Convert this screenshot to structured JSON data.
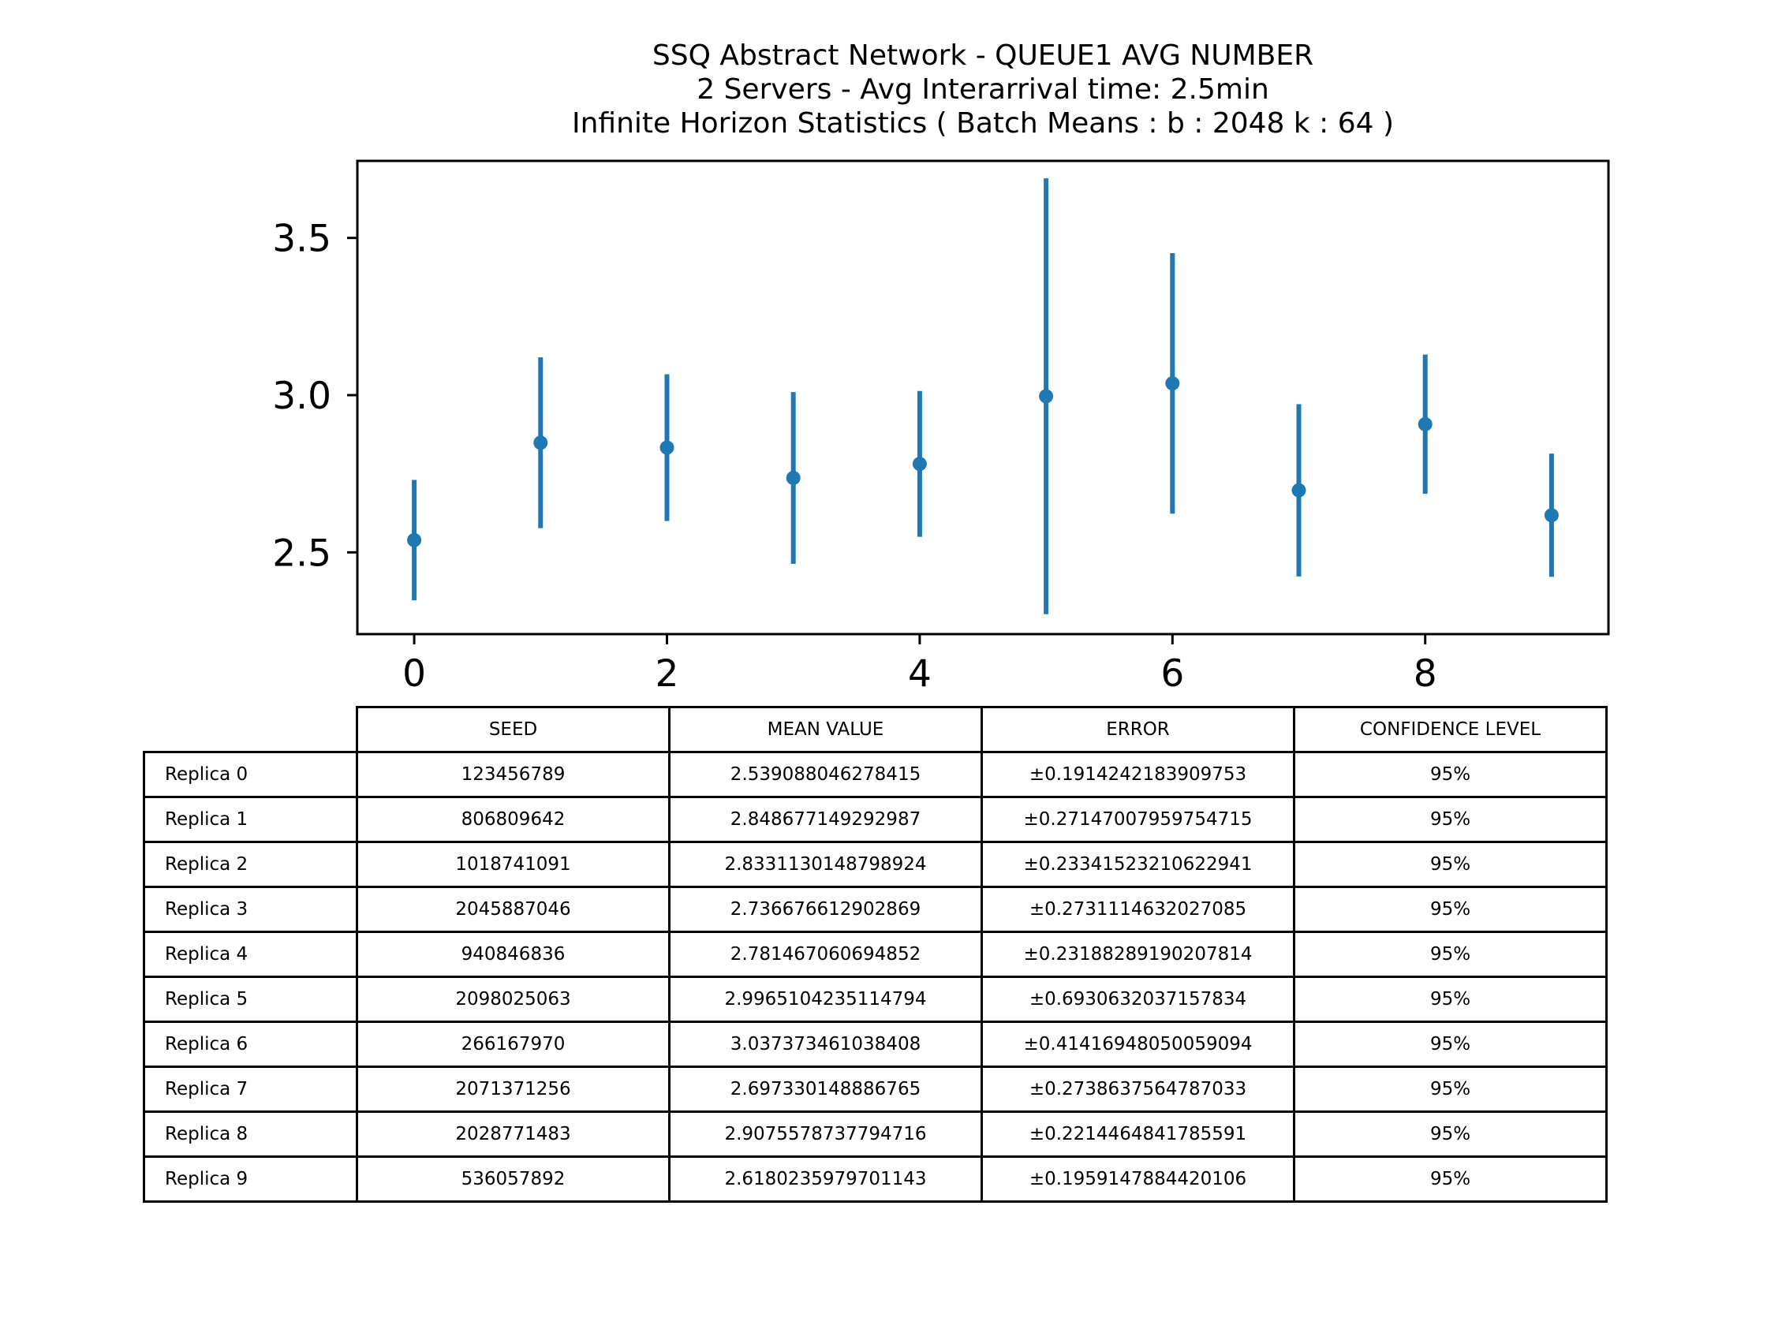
{
  "chart_data": {
    "type": "errorbar",
    "title": [
      "SSQ Abstract Network - QUEUE1 AVG NUMBER",
      "2 Servers -  Avg Interarrival time: 2.5min",
      "Infinite Horizon Statistics ( Batch Means : b : 2048  k : 64 )"
    ],
    "xlabel": "",
    "ylabel": "",
    "x": [
      0,
      1,
      2,
      3,
      4,
      5,
      6,
      7,
      8,
      9
    ],
    "y": [
      2.539088046278415,
      2.848677149292987,
      2.8331130148798924,
      2.736676612902869,
      2.781467060694852,
      2.9965104235114794,
      3.037373461038408,
      2.697330148886765,
      2.9075578737794716,
      2.6180235979701143
    ],
    "yerr": [
      0.1914242183909753,
      0.27147007959754715,
      0.23341523210622941,
      0.2731114632027085,
      0.23188289190207814,
      0.6930632037157834,
      0.41416948050059094,
      0.2738637564787033,
      0.2214464841785591,
      0.1959147884420106
    ],
    "xlim": [
      -0.45,
      9.45
    ],
    "ylim": [
      2.24,
      3.745
    ],
    "xticks": [
      0,
      2,
      4,
      6,
      8
    ],
    "xtick_labels": [
      "0",
      "2",
      "4",
      "6",
      "8"
    ],
    "yticks": [
      2.5,
      3.0,
      3.5
    ],
    "ytick_labels": [
      "2.5",
      "3.0",
      "3.5"
    ],
    "grid": false,
    "color": "#1f77b4"
  },
  "table": {
    "columns": [
      "SEED",
      "MEAN VALUE",
      "ERROR",
      "CONFIDENCE LEVEL"
    ],
    "rows": [
      {
        "label": "Replica 0",
        "cells": [
          "123456789",
          "2.539088046278415",
          "±0.1914242183909753",
          "95%"
        ]
      },
      {
        "label": "Replica 1",
        "cells": [
          "806809642",
          "2.848677149292987",
          "±0.27147007959754715",
          "95%"
        ]
      },
      {
        "label": "Replica 2",
        "cells": [
          "1018741091",
          "2.8331130148798924",
          "±0.23341523210622941",
          "95%"
        ]
      },
      {
        "label": "Replica 3",
        "cells": [
          "2045887046",
          "2.736676612902869",
          "±0.2731114632027085",
          "95%"
        ]
      },
      {
        "label": "Replica 4",
        "cells": [
          "940846836",
          "2.781467060694852",
          "±0.23188289190207814",
          "95%"
        ]
      },
      {
        "label": "Replica 5",
        "cells": [
          "2098025063",
          "2.9965104235114794",
          "±0.6930632037157834",
          "95%"
        ]
      },
      {
        "label": "Replica 6",
        "cells": [
          "266167970",
          "3.037373461038408",
          "±0.41416948050059094",
          "95%"
        ]
      },
      {
        "label": "Replica 7",
        "cells": [
          "2071371256",
          "2.697330148886765",
          "±0.2738637564787033",
          "95%"
        ]
      },
      {
        "label": "Replica 8",
        "cells": [
          "2028771483",
          "2.9075578737794716",
          "±0.2214464841785591",
          "95%"
        ]
      },
      {
        "label": "Replica 9",
        "cells": [
          "536057892",
          "2.6180235979701143",
          "±0.1959147884420106",
          "95%"
        ]
      }
    ]
  }
}
